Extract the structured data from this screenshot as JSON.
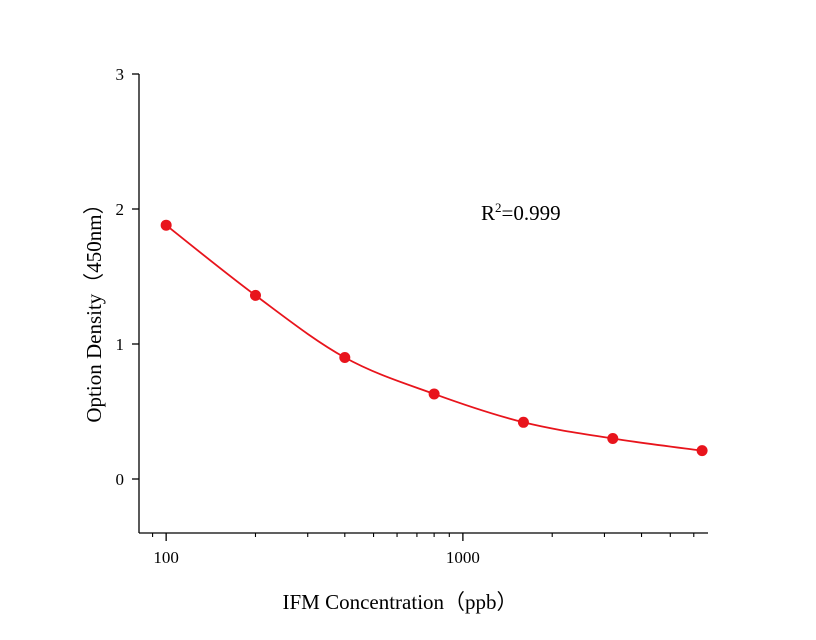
{
  "chart_data": {
    "type": "scatter",
    "title": "",
    "xlabel": "IFM Concentration（ppb）",
    "ylabel": "Option Density（450nm）",
    "xscale": "log",
    "xlim": [
      81,
      6700
    ],
    "ylim": [
      -0.4,
      3.0
    ],
    "x_ticks": [
      100,
      1000
    ],
    "x_tick_labels": [
      "100",
      "1000"
    ],
    "y_ticks": [
      0,
      1,
      2,
      3
    ],
    "y_tick_labels": [
      "0",
      "1",
      "2",
      "3"
    ],
    "grid": false,
    "legend": "none",
    "annotation": {
      "base": "R",
      "sup": "2",
      "rest": "=0.999"
    },
    "series": [
      {
        "points": [
          {
            "x": 100,
            "y": 1.88
          },
          {
            "x": 200,
            "y": 1.36
          },
          {
            "x": 400,
            "y": 0.9
          },
          {
            "x": 800,
            "y": 0.63
          },
          {
            "x": 1600,
            "y": 0.42
          },
          {
            "x": 3200,
            "y": 0.3
          },
          {
            "x": 6400,
            "y": 0.21
          }
        ],
        "color": "#e8141c",
        "fit_curve": true
      }
    ]
  }
}
